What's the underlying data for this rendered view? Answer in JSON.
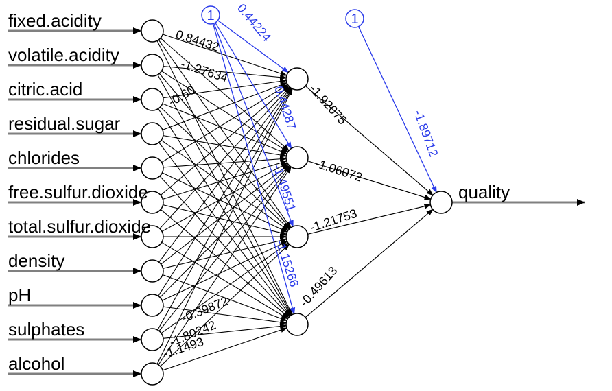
{
  "network": {
    "inputs": [
      {
        "label": "fixed.acidity"
      },
      {
        "label": "volatile.acidity"
      },
      {
        "label": "citric.acid"
      },
      {
        "label": "residual.sugar"
      },
      {
        "label": "chlorides"
      },
      {
        "label": "free.sulfur.dioxide"
      },
      {
        "label": "total.sulfur.dioxide"
      },
      {
        "label": "density"
      },
      {
        "label": "pH"
      },
      {
        "label": "sulphates"
      },
      {
        "label": "alcohol"
      }
    ],
    "hidden_count": 4,
    "output": {
      "label": "quality"
    },
    "bias_nodes": [
      {
        "label": "1"
      },
      {
        "label": "1"
      }
    ],
    "input_hidden_weight_labels": [
      "0.84432",
      "-1.27634",
      "-0.60",
      "-0.39872",
      "-1.80242",
      "-1.1493"
    ],
    "bias_hidden_weights": [
      "0.44224",
      "0.44287",
      "-1.49551",
      "-1.15266"
    ],
    "hidden_output_weights": [
      "-1.92075",
      "-1.06072",
      "-1.21753",
      "-0.49613"
    ],
    "bias_output_weight": "-1.89712",
    "colors": {
      "edge": "#000000",
      "bias_edge": "#2a3bea",
      "input_arrow": "#808080",
      "node_fill": "#ffffff",
      "node_stroke": "#000000"
    }
  }
}
